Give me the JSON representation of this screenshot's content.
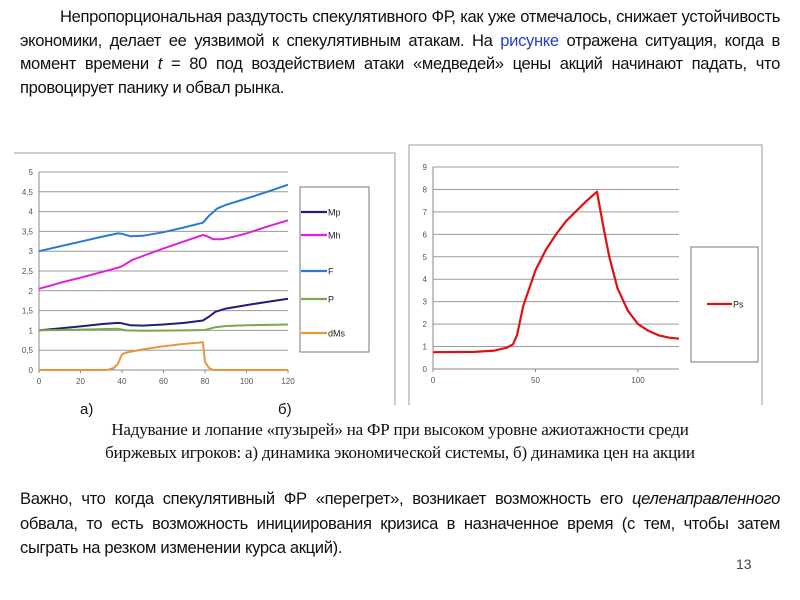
{
  "intro": {
    "part1": "Непропорциональная раздутость спекулятивного ФР, как уже отмечалось, снижает устойчивость экономики, делает ее уязвимой к спекулятивным атакам. На ",
    "link": "рисунке",
    "part2": " отражена ситуация, когда в момент времени ",
    "var": "t",
    "part3": " = 80 под воздействием атаки «медведей» цены акций начинают падать, что провоцирует панику и обвал рынка."
  },
  "labels": {
    "a": "а)",
    "b": "б)"
  },
  "caption": {
    "line1": "Надувание и лопание «пузырей» на ФР при высоком уровне ажиотажности среди",
    "line2": "биржевых игроков: а) динамика экономической системы, б) динамика цен на акции"
  },
  "conclusion": {
    "part1": "Важно, что когда спекулятивный ФР «перегрет», возникает возможность его ",
    "emph": "целенаправленного",
    "part2": " обвала, то есть возможность инициирования кризиса в назначенное время (с тем, чтобы затем сыграть на резком изменении курса акций)."
  },
  "page_number": "13",
  "chart_data": [
    {
      "type": "line",
      "title": "",
      "xlabel": "",
      "ylabel": "",
      "xlim": [
        0,
        120
      ],
      "ylim": [
        0,
        5
      ],
      "xticks": [
        0,
        20,
        40,
        60,
        80,
        100,
        120
      ],
      "xtick_labels": [
        "0",
        "20",
        "40",
        "60",
        "80",
        "100",
        "120"
      ],
      "yticks": [
        0,
        0.5,
        1,
        1.5,
        2,
        2.5,
        3,
        3.5,
        4,
        4.5,
        5
      ],
      "ytick_labels": [
        "0",
        "0,5",
        "1",
        "1,5",
        "2",
        "2,5",
        "3",
        "3,5",
        "4",
        "4,5",
        "5"
      ],
      "grid": true,
      "legend": "right",
      "series": [
        {
          "name": "Mp",
          "color": "#1f1f7a",
          "points": [
            [
              0,
              1.0
            ],
            [
              10,
              1.05
            ],
            [
              20,
              1.1
            ],
            [
              30,
              1.16
            ],
            [
              38,
              1.19
            ],
            [
              40,
              1.18
            ],
            [
              44,
              1.13
            ],
            [
              50,
              1.12
            ],
            [
              60,
              1.15
            ],
            [
              70,
              1.19
            ],
            [
              79,
              1.25
            ],
            [
              82,
              1.35
            ],
            [
              85,
              1.47
            ],
            [
              90,
              1.55
            ],
            [
              100,
              1.64
            ],
            [
              110,
              1.72
            ],
            [
              120,
              1.8
            ]
          ]
        },
        {
          "name": "Mh",
          "color": "#e020d8",
          "points": [
            [
              0,
              2.05
            ],
            [
              10,
              2.2
            ],
            [
              20,
              2.33
            ],
            [
              30,
              2.47
            ],
            [
              38,
              2.58
            ],
            [
              40,
              2.62
            ],
            [
              45,
              2.78
            ],
            [
              50,
              2.88
            ],
            [
              60,
              3.07
            ],
            [
              70,
              3.25
            ],
            [
              79,
              3.41
            ],
            [
              81,
              3.38
            ],
            [
              84,
              3.3
            ],
            [
              88,
              3.3
            ],
            [
              95,
              3.38
            ],
            [
              100,
              3.45
            ],
            [
              110,
              3.62
            ],
            [
              120,
              3.78
            ]
          ]
        },
        {
          "name": "F",
          "color": "#2a7bd0",
          "points": [
            [
              0,
              3.0
            ],
            [
              10,
              3.12
            ],
            [
              20,
              3.24
            ],
            [
              30,
              3.36
            ],
            [
              38,
              3.45
            ],
            [
              40,
              3.44
            ],
            [
              44,
              3.38
            ],
            [
              50,
              3.39
            ],
            [
              60,
              3.48
            ],
            [
              70,
              3.6
            ],
            [
              79,
              3.72
            ],
            [
              82,
              3.9
            ],
            [
              86,
              4.08
            ],
            [
              90,
              4.17
            ],
            [
              100,
              4.33
            ],
            [
              110,
              4.5
            ],
            [
              120,
              4.68
            ]
          ]
        },
        {
          "name": "P",
          "color": "#7aa84a",
          "points": [
            [
              0,
              1.0
            ],
            [
              20,
              1.02
            ],
            [
              38,
              1.04
            ],
            [
              42,
              1.0
            ],
            [
              50,
              0.99
            ],
            [
              70,
              1.0
            ],
            [
              80,
              1.01
            ],
            [
              85,
              1.08
            ],
            [
              90,
              1.11
            ],
            [
              100,
              1.13
            ],
            [
              120,
              1.15
            ]
          ]
        },
        {
          "name": "dMs",
          "color": "#e8963c",
          "points": [
            [
              0,
              0
            ],
            [
              33,
              0
            ],
            [
              36,
              0.05
            ],
            [
              38,
              0.15
            ],
            [
              40,
              0.4
            ],
            [
              42,
              0.44
            ],
            [
              50,
              0.52
            ],
            [
              60,
              0.6
            ],
            [
              70,
              0.66
            ],
            [
              79,
              0.7
            ],
            [
              80,
              0.2
            ],
            [
              82,
              0.05
            ],
            [
              84,
              0
            ],
            [
              120,
              0
            ]
          ]
        }
      ]
    },
    {
      "type": "line",
      "title": "",
      "xlabel": "",
      "ylabel": "",
      "xlim": [
        0,
        120
      ],
      "ylim": [
        0,
        9
      ],
      "xticks": [
        0,
        50,
        100
      ],
      "xtick_labels": [
        "0",
        "50",
        "100"
      ],
      "yticks": [
        0,
        1,
        2,
        3,
        4,
        5,
        6,
        7,
        8,
        9
      ],
      "ytick_labels": [
        "0",
        "1",
        "2",
        "3",
        "4",
        "5",
        "6",
        "7",
        "8",
        "9"
      ],
      "grid": true,
      "legend": "right",
      "series": [
        {
          "name": "Ps",
          "color": "#e01010",
          "points": [
            [
              0,
              0.75
            ],
            [
              20,
              0.76
            ],
            [
              30,
              0.82
            ],
            [
              36,
              0.95
            ],
            [
              39,
              1.1
            ],
            [
              41,
              1.5
            ],
            [
              44,
              2.8
            ],
            [
              50,
              4.4
            ],
            [
              55,
              5.3
            ],
            [
              60,
              6.0
            ],
            [
              65,
              6.6
            ],
            [
              70,
              7.05
            ],
            [
              75,
              7.5
            ],
            [
              80,
              7.9
            ],
            [
              83,
              6.4
            ],
            [
              86,
              5.0
            ],
            [
              90,
              3.6
            ],
            [
              95,
              2.6
            ],
            [
              100,
              2.0
            ],
            [
              105,
              1.7
            ],
            [
              110,
              1.5
            ],
            [
              115,
              1.4
            ],
            [
              120,
              1.35
            ]
          ]
        }
      ]
    }
  ]
}
